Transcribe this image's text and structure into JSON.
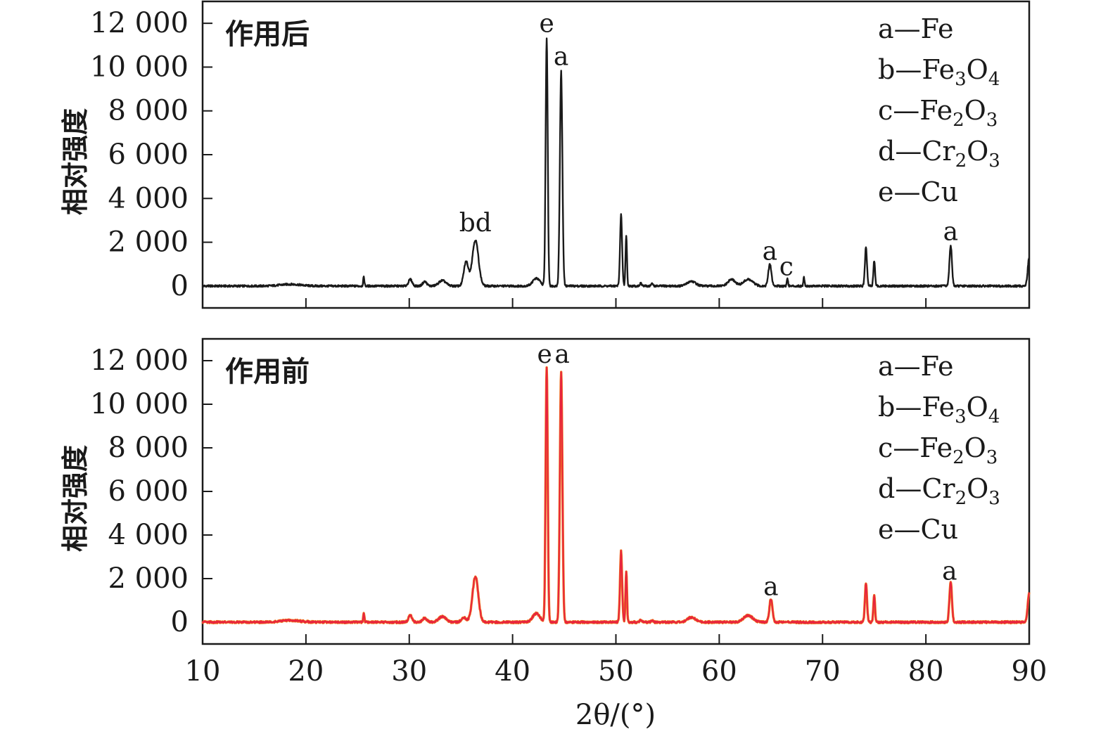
{
  "chart_data": [
    {
      "type": "line",
      "title": "作用后",
      "xlabel": "2θ/(°)",
      "ylabel": "相对强度",
      "xlim": [
        10,
        90
      ],
      "ylim": [
        -1000,
        13000
      ],
      "x_ticks": [
        10,
        20,
        30,
        40,
        50,
        60,
        70,
        80,
        90
      ],
      "y_ticks": [
        0,
        2000,
        4000,
        6000,
        8000,
        10000,
        12000
      ],
      "y_tick_labels": [
        "0",
        "2 000",
        "4 000",
        "6 000",
        "8 000",
        "10 000",
        "12 000"
      ],
      "grid": false,
      "legend_position": "top-right",
      "line_color": "#1a1a1a",
      "legend": [
        {
          "key": "a",
          "name": "Fe",
          "parts": [
            [
              "Fe",
              ""
            ]
          ]
        },
        {
          "key": "b",
          "name": "Fe3O4",
          "parts": [
            [
              "Fe",
              "3"
            ],
            [
              "O",
              "4"
            ]
          ]
        },
        {
          "key": "c",
          "name": "Fe2O3",
          "parts": [
            [
              "Fe",
              "2"
            ],
            [
              "O",
              "3"
            ]
          ]
        },
        {
          "key": "d",
          "name": "Cr2O3",
          "parts": [
            [
              "Cr",
              "2"
            ],
            [
              "O",
              "3"
            ]
          ]
        },
        {
          "key": "e",
          "name": "Cu",
          "parts": [
            [
              "Cu",
              ""
            ]
          ]
        }
      ],
      "peak_labels": [
        {
          "x": 36.4,
          "y": 2500,
          "label": "bd"
        },
        {
          "x": 43.3,
          "y": 11600,
          "label": "e"
        },
        {
          "x": 44.7,
          "y": 10100,
          "label": "a"
        },
        {
          "x": 64.9,
          "y": 1200,
          "label": "a"
        },
        {
          "x": 66.5,
          "y": 500,
          "label": "c"
        },
        {
          "x": 82.4,
          "y": 2100,
          "label": "a"
        }
      ],
      "baseline": 0,
      "peaks": [
        {
          "x": 18.5,
          "y": 80,
          "w": 1.0
        },
        {
          "x": 25.6,
          "y": 400,
          "w": 0.06
        },
        {
          "x": 30.1,
          "y": 300,
          "w": 0.18
        },
        {
          "x": 31.5,
          "y": 200,
          "w": 0.2
        },
        {
          "x": 33.2,
          "y": 250,
          "w": 0.35
        },
        {
          "x": 35.5,
          "y": 1100,
          "w": 0.22
        },
        {
          "x": 36.4,
          "y": 2100,
          "w": 0.3
        },
        {
          "x": 42.3,
          "y": 350,
          "w": 0.35
        },
        {
          "x": 43.3,
          "y": 11300,
          "w": 0.1
        },
        {
          "x": 44.7,
          "y": 9800,
          "w": 0.12
        },
        {
          "x": 50.5,
          "y": 3250,
          "w": 0.1
        },
        {
          "x": 51.0,
          "y": 2300,
          "w": 0.07
        },
        {
          "x": 52.4,
          "y": 120,
          "w": 0.1
        },
        {
          "x": 53.5,
          "y": 100,
          "w": 0.1
        },
        {
          "x": 57.3,
          "y": 220,
          "w": 0.4
        },
        {
          "x": 61.2,
          "y": 300,
          "w": 0.35
        },
        {
          "x": 62.8,
          "y": 300,
          "w": 0.45
        },
        {
          "x": 64.9,
          "y": 1000,
          "w": 0.15
        },
        {
          "x": 66.6,
          "y": 350,
          "w": 0.06
        },
        {
          "x": 68.2,
          "y": 400,
          "w": 0.06
        },
        {
          "x": 74.2,
          "y": 1750,
          "w": 0.1
        },
        {
          "x": 75.0,
          "y": 1150,
          "w": 0.08
        },
        {
          "x": 82.4,
          "y": 1850,
          "w": 0.12
        },
        {
          "x": 90.0,
          "y": 1300,
          "w": 0.14
        }
      ]
    },
    {
      "type": "line",
      "title": "作用前",
      "xlabel": "2θ/(°)",
      "ylabel": "相对强度",
      "xlim": [
        10,
        90
      ],
      "ylim": [
        -1000,
        13000
      ],
      "x_ticks": [
        10,
        20,
        30,
        40,
        50,
        60,
        70,
        80,
        90
      ],
      "y_ticks": [
        0,
        2000,
        4000,
        6000,
        8000,
        10000,
        12000
      ],
      "y_tick_labels": [
        "0",
        "2 000",
        "4 000",
        "6 000",
        "8 000",
        "10 000",
        "12 000"
      ],
      "grid": false,
      "legend_position": "top-right",
      "line_color": "#e8243f",
      "line_color_secondary": "#f07a1a",
      "legend": [
        {
          "key": "a",
          "name": "Fe",
          "parts": [
            [
              "Fe",
              ""
            ]
          ]
        },
        {
          "key": "b",
          "name": "Fe3O4",
          "parts": [
            [
              "Fe",
              "3"
            ],
            [
              "O",
              "4"
            ]
          ]
        },
        {
          "key": "c",
          "name": "Fe2O3",
          "parts": [
            [
              "Fe",
              "2"
            ],
            [
              "O",
              "3"
            ]
          ]
        },
        {
          "key": "d",
          "name": "Cr2O3",
          "parts": [
            [
              "Cr",
              "2"
            ],
            [
              "O",
              "3"
            ]
          ]
        },
        {
          "key": "e",
          "name": "Cu",
          "parts": [
            [
              "Cu",
              ""
            ]
          ]
        }
      ],
      "peak_labels": [
        {
          "x": 43.1,
          "y": 11900,
          "label": "e"
        },
        {
          "x": 44.8,
          "y": 11900,
          "label": "a"
        },
        {
          "x": 65.0,
          "y": 1250,
          "label": "a"
        },
        {
          "x": 82.3,
          "y": 1950,
          "label": "a"
        }
      ],
      "baseline": 0,
      "peaks": [
        {
          "x": 18.5,
          "y": 80,
          "w": 1.0
        },
        {
          "x": 25.6,
          "y": 400,
          "w": 0.06
        },
        {
          "x": 30.1,
          "y": 300,
          "w": 0.18
        },
        {
          "x": 31.5,
          "y": 200,
          "w": 0.2
        },
        {
          "x": 33.2,
          "y": 250,
          "w": 0.35
        },
        {
          "x": 35.3,
          "y": 200,
          "w": 0.25
        },
        {
          "x": 36.4,
          "y": 2100,
          "w": 0.28
        },
        {
          "x": 42.3,
          "y": 400,
          "w": 0.35
        },
        {
          "x": 43.3,
          "y": 11700,
          "w": 0.1
        },
        {
          "x": 44.7,
          "y": 11500,
          "w": 0.12
        },
        {
          "x": 50.5,
          "y": 3250,
          "w": 0.1
        },
        {
          "x": 51.0,
          "y": 2300,
          "w": 0.07
        },
        {
          "x": 52.4,
          "y": 120,
          "w": 0.1
        },
        {
          "x": 53.5,
          "y": 100,
          "w": 0.1
        },
        {
          "x": 57.3,
          "y": 220,
          "w": 0.4
        },
        {
          "x": 62.8,
          "y": 300,
          "w": 0.45
        },
        {
          "x": 65.0,
          "y": 1050,
          "w": 0.15
        },
        {
          "x": 74.2,
          "y": 1800,
          "w": 0.1
        },
        {
          "x": 75.0,
          "y": 1200,
          "w": 0.08
        },
        {
          "x": 82.4,
          "y": 1850,
          "w": 0.12
        },
        {
          "x": 90.0,
          "y": 1350,
          "w": 0.14
        }
      ]
    }
  ]
}
